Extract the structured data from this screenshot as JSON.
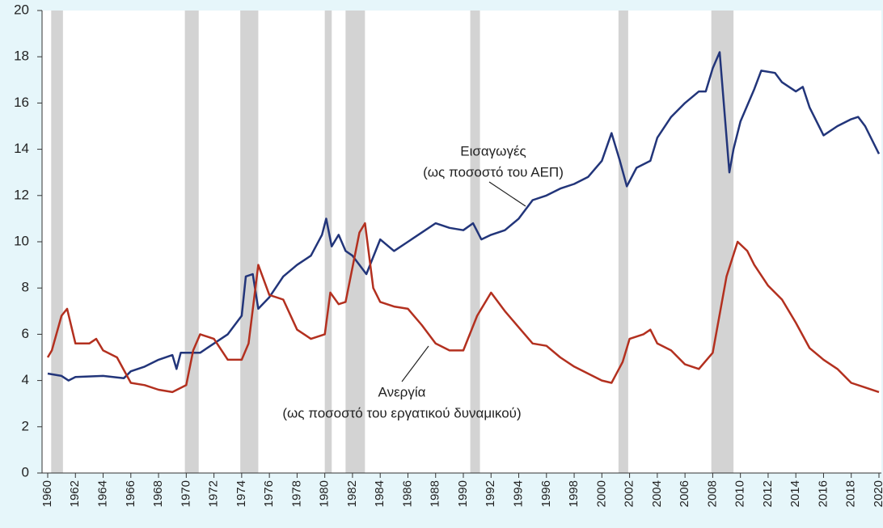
{
  "chart_data": {
    "type": "line",
    "xlim": [
      1960,
      2020
    ],
    "ylim": [
      0,
      20
    ],
    "xticks": [
      1960,
      1962,
      1964,
      1966,
      1968,
      1970,
      1972,
      1974,
      1976,
      1978,
      1980,
      1982,
      1984,
      1986,
      1988,
      1990,
      1992,
      1994,
      1996,
      1998,
      2000,
      2002,
      2004,
      2006,
      2008,
      2010,
      2012,
      2014,
      2016,
      2018,
      2020
    ],
    "yticks": [
      0,
      2,
      4,
      6,
      8,
      10,
      12,
      14,
      16,
      18,
      20
    ],
    "recessions": [
      [
        1960.25,
        1961.1
      ],
      [
        1969.9,
        1970.9
      ],
      [
        1973.9,
        1975.2
      ],
      [
        1980.0,
        1980.5
      ],
      [
        1981.5,
        1982.9
      ],
      [
        1990.5,
        1991.2
      ],
      [
        2001.2,
        2001.9
      ],
      [
        2007.9,
        2009.5
      ]
    ],
    "recession_color": "#d3d3d3",
    "series": [
      {
        "name": "Εισαγωγές",
        "color": "#22357a",
        "x": [
          1960,
          1961,
          1961.5,
          1962,
          1964,
          1965.5,
          1966,
          1967,
          1968,
          1969,
          1969.3,
          1969.6,
          1971,
          1972,
          1973,
          1974,
          1974.3,
          1974.8,
          1975.2,
          1976,
          1977,
          1978,
          1979,
          1979.8,
          1980.1,
          1980.5,
          1981,
          1981.5,
          1982,
          1983,
          1984,
          1985,
          1986,
          1987,
          1988,
          1989,
          1990,
          1990.7,
          1991.3,
          1992,
          1993,
          1994,
          1995,
          1996,
          1997,
          1998,
          1999,
          2000,
          2000.7,
          2001.3,
          2001.8,
          2002.5,
          2003.5,
          2004,
          2005,
          2006,
          2007,
          2007.5,
          2008,
          2008.5,
          2009.2,
          2009.5,
          2010,
          2011,
          2011.5,
          2012.5,
          2013,
          2014,
          2014.5,
          2015,
          2016,
          2017,
          2018,
          2018.5,
          2019,
          2020
        ],
        "values": [
          4.3,
          4.2,
          4.0,
          4.15,
          4.2,
          4.1,
          4.4,
          4.6,
          4.9,
          5.1,
          4.5,
          5.2,
          5.2,
          5.6,
          6.0,
          6.8,
          8.5,
          8.6,
          7.1,
          7.6,
          8.5,
          9.0,
          9.4,
          10.3,
          11.0,
          9.8,
          10.3,
          9.6,
          9.4,
          8.6,
          10.1,
          9.6,
          10.0,
          10.4,
          10.8,
          10.6,
          10.5,
          10.8,
          10.1,
          10.3,
          10.5,
          11.0,
          11.8,
          12.0,
          12.3,
          12.5,
          12.8,
          13.5,
          14.7,
          13.5,
          12.4,
          13.2,
          13.5,
          14.5,
          15.4,
          16.0,
          16.5,
          16.5,
          17.5,
          18.2,
          13.0,
          14.0,
          15.2,
          16.6,
          17.4,
          17.3,
          16.9,
          16.5,
          16.7,
          15.8,
          14.6,
          15.0,
          15.3,
          15.4,
          15.0,
          13.8
        ]
      },
      {
        "name": "Ανεργία",
        "color": "#b3301f",
        "x": [
          1960,
          1960.3,
          1961,
          1961.4,
          1962,
          1963,
          1963.5,
          1964,
          1965,
          1966,
          1967,
          1968,
          1969,
          1970,
          1970.5,
          1971,
          1972,
          1973,
          1974,
          1974.5,
          1975.2,
          1976,
          1977,
          1978,
          1979,
          1980,
          1980.4,
          1981,
          1981.5,
          1982.5,
          1982.9,
          1983.5,
          1984,
          1985,
          1986,
          1987,
          1988,
          1989,
          1990,
          1991,
          1992,
          1993,
          1994,
          1995,
          1996,
          1997,
          1998,
          1999,
          2000,
          2000.7,
          2001.5,
          2002,
          2003,
          2003.5,
          2004,
          2005,
          2006,
          2007,
          2008,
          2009,
          2009.8,
          2010.5,
          2011,
          2012,
          2013,
          2014,
          2015,
          2016,
          2017,
          2018,
          2019,
          2020
        ],
        "values": [
          5.0,
          5.3,
          6.8,
          7.1,
          5.6,
          5.6,
          5.8,
          5.3,
          5.0,
          3.9,
          3.8,
          3.6,
          3.5,
          3.8,
          5.3,
          6.0,
          5.8,
          4.9,
          4.9,
          5.6,
          9.0,
          7.7,
          7.5,
          6.2,
          5.8,
          6.0,
          7.8,
          7.3,
          7.4,
          10.4,
          10.8,
          8.0,
          7.4,
          7.2,
          7.1,
          6.4,
          5.6,
          5.3,
          5.3,
          6.8,
          7.8,
          7.0,
          6.3,
          5.6,
          5.5,
          5.0,
          4.6,
          4.3,
          4.0,
          3.9,
          4.8,
          5.8,
          6.0,
          6.2,
          5.6,
          5.3,
          4.7,
          4.5,
          5.2,
          8.5,
          10.0,
          9.6,
          9.0,
          8.1,
          7.5,
          6.5,
          5.4,
          4.9,
          4.5,
          3.9,
          3.7,
          3.5
        ]
      }
    ],
    "annotations": [
      {
        "lines": [
          "Εισαγωγές",
          "(ως ποσοστό του ΑΕΠ)"
        ]
      },
      {
        "lines": [
          "Ανεργία",
          "(ως ποσοστό του εργατικού δυναμικού)"
        ]
      }
    ]
  }
}
